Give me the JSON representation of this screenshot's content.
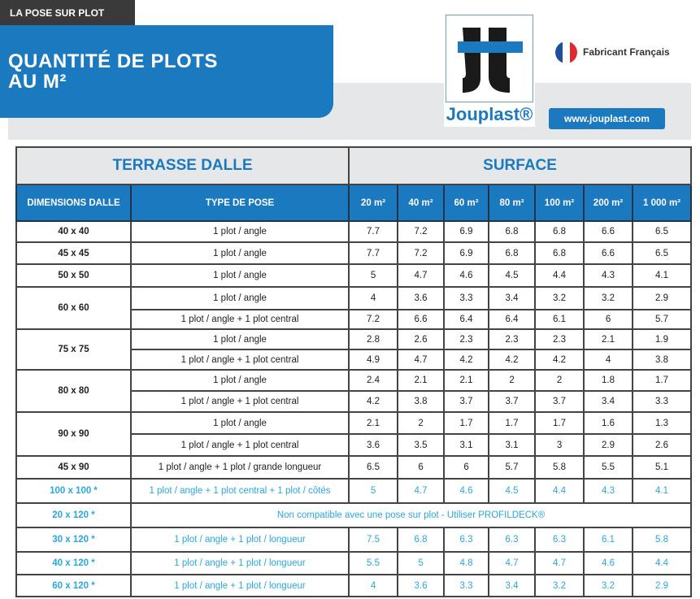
{
  "header": {
    "tag": "LA POSE SUR PLOT",
    "title_line1": "QUANTITÉ DE PLOTS",
    "title_line2": "AU M²",
    "brand": "Jouplast®",
    "badge": "Fabricant Français",
    "website": "www.jouplast.com"
  },
  "colors": {
    "brand_blue": "#1b79bf",
    "highlight": "#29a8e0"
  },
  "table": {
    "group_left": "TERRASSE DALLE",
    "group_right": "SURFACE",
    "col_dim": "DIMENSIONS DALLE",
    "col_type": "TYPE DE POSE",
    "surfaces": [
      "20 m²",
      "40 m²",
      "60 m²",
      "80 m²",
      "100 m²",
      "200 m²",
      "1 000 m²"
    ],
    "rows": [
      {
        "dim": "40 x 40",
        "poses": [
          {
            "type": "1 plot / angle",
            "values": [
              "7.7",
              "7.2",
              "6.9",
              "6.8",
              "6.8",
              "6.6",
              "6.5"
            ]
          }
        ]
      },
      {
        "dim": "45 x 45",
        "poses": [
          {
            "type": "1 plot / angle",
            "values": [
              "7.7",
              "7.2",
              "6.9",
              "6.8",
              "6.8",
              "6.6",
              "6.5"
            ]
          }
        ]
      },
      {
        "dim": "50 x 50",
        "poses": [
          {
            "type": "1 plot / angle",
            "values": [
              "5",
              "4.7",
              "4.6",
              "4.5",
              "4.4",
              "4.3",
              "4.1"
            ]
          }
        ]
      },
      {
        "dim": "60 x 60",
        "poses": [
          {
            "type": "1 plot / angle",
            "values": [
              "4",
              "3.6",
              "3.3",
              "3.4",
              "3.2",
              "3.2",
              "2.9"
            ]
          },
          {
            "type": "1 plot / angle + 1 plot central",
            "values": [
              "7.2",
              "6.6",
              "6.4",
              "6.4",
              "6.1",
              "6",
              "5.7"
            ]
          }
        ]
      },
      {
        "dim": "75 x 75",
        "poses": [
          {
            "type": "1 plot / angle",
            "values": [
              "2.8",
              "2.6",
              "2.3",
              "2.3",
              "2.3",
              "2.1",
              "1.9"
            ]
          },
          {
            "type": "1 plot / angle + 1 plot central",
            "values": [
              "4.9",
              "4.7",
              "4.2",
              "4.2",
              "4.2",
              "4",
              "3.8"
            ]
          }
        ]
      },
      {
        "dim": "80 x 80",
        "poses": [
          {
            "type": "1 plot / angle",
            "values": [
              "2.4",
              "2.1",
              "2.1",
              "2",
              "2",
              "1.8",
              "1.7"
            ]
          },
          {
            "type": "1 plot / angle + 1 plot central",
            "values": [
              "4.2",
              "3.8",
              "3.7",
              "3.7",
              "3.7",
              "3.4",
              "3.3"
            ]
          }
        ]
      },
      {
        "dim": "90 x 90",
        "poses": [
          {
            "type": "1 plot / angle",
            "values": [
              "2.1",
              "2",
              "1.7",
              "1.7",
              "1.7",
              "1.6",
              "1.3"
            ]
          },
          {
            "type": "1 plot / angle + 1 plot central",
            "values": [
              "3.6",
              "3.5",
              "3.1",
              "3.1",
              "3",
              "2.9",
              "2.6"
            ]
          }
        ]
      },
      {
        "dim": "45 x 90",
        "poses": [
          {
            "type": "1 plot / angle + 1 plot / grande longueur",
            "values": [
              "6.5",
              "6",
              "6",
              "5.7",
              "5.8",
              "5.5",
              "5.1"
            ]
          }
        ]
      },
      {
        "dim": "100 x 100 *",
        "highlight": true,
        "poses": [
          {
            "type": "1 plot / angle + 1 plot central + 1 plot / côtés",
            "values": [
              "5",
              "4.7",
              "4.6",
              "4.5",
              "4.4",
              "4.3",
              "4.1"
            ]
          }
        ]
      },
      {
        "dim": "20 x 120 *",
        "highlight": true,
        "note": "Non compatible avec une pose sur plot - Utiliser PROFILDECK®"
      },
      {
        "dim": "30 x 120 *",
        "highlight": true,
        "poses": [
          {
            "type": "1 plot / angle + 1 plot / longueur",
            "values": [
              "7.5",
              "6.8",
              "6.3",
              "6.3",
              "6.3",
              "6.1",
              "5.8"
            ]
          }
        ]
      },
      {
        "dim": "40 x 120 *",
        "highlight": true,
        "poses": [
          {
            "type": "1 plot / angle + 1 plot / longueur",
            "values": [
              "5.5",
              "5",
              "4.8",
              "4.7",
              "4.7",
              "4.6",
              "4.4"
            ]
          }
        ]
      },
      {
        "dim": "60 x 120 *",
        "highlight": true,
        "poses": [
          {
            "type": "1 plot / angle + 1 plot / longueur",
            "values": [
              "4",
              "3.6",
              "3.3",
              "3.4",
              "3.2",
              "3.2",
              "2.9"
            ]
          }
        ]
      }
    ]
  }
}
